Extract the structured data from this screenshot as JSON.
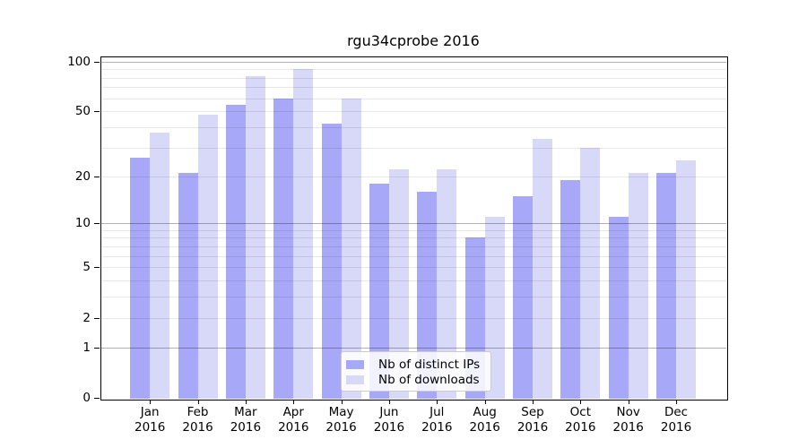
{
  "chart_data": {
    "type": "bar",
    "title": "rgu34cprobe 2016",
    "categories": [
      "Jan",
      "Feb",
      "Mar",
      "Apr",
      "May",
      "Jun",
      "Jul",
      "Aug",
      "Sep",
      "Oct",
      "Nov",
      "Dec"
    ],
    "year_label": "2016",
    "series": [
      {
        "name": "Nb of distinct IPs",
        "color": "#a8a8f8",
        "values": [
          26,
          21,
          55,
          60,
          42,
          18,
          16,
          8,
          15,
          19,
          11,
          21
        ]
      },
      {
        "name": "Nb of downloads",
        "color": "#d8d8f8",
        "values": [
          37,
          48,
          82,
          90,
          60,
          22,
          22,
          11,
          34,
          30,
          21,
          25
        ]
      }
    ],
    "yscale": "log1p",
    "ylim": [
      0,
      100
    ],
    "yticks": [
      0,
      1,
      2,
      5,
      10,
      20,
      50,
      100
    ],
    "grid_major": [
      1,
      10,
      100
    ],
    "grid_minor": [
      2,
      3,
      4,
      5,
      6,
      7,
      8,
      9,
      20,
      30,
      40,
      50,
      60,
      70,
      80,
      90
    ],
    "grid": "on",
    "legend_position": "bottom-center",
    "xlabel": "",
    "ylabel": ""
  },
  "colors": {
    "grid_major": "rgba(0,0,0,0.30)",
    "grid_minor": "rgba(0,0,0,0.09)",
    "spine": "#000000",
    "background": "#ffffff"
  }
}
